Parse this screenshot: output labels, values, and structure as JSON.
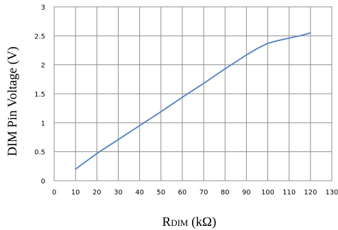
{
  "chart_data": {
    "type": "line",
    "xlabel_main": "R",
    "xlabel_sub": "DIM",
    "xlabel_unit": " (kΩ)",
    "ylabel": "DIM Pin Voltage (V)",
    "xlim": [
      0,
      130
    ],
    "ylim": [
      0,
      3
    ],
    "x_ticks": [
      "0",
      "10",
      "20",
      "30",
      "40",
      "50",
      "60",
      "70",
      "80",
      "90",
      "100",
      "110",
      "120",
      "130"
    ],
    "y_ticks": [
      "0",
      "0.5",
      "1",
      "1.5",
      "2",
      "2.5",
      "3"
    ],
    "grid": true,
    "line_color": "#5b87c5",
    "series": [
      {
        "x": [
          10,
          20,
          30,
          40,
          50,
          60,
          70,
          80,
          90,
          95,
          100,
          105,
          110,
          115,
          120
        ],
        "y": [
          0.2,
          0.47,
          0.71,
          0.95,
          1.19,
          1.44,
          1.68,
          1.93,
          2.17,
          2.28,
          2.37,
          2.42,
          2.46,
          2.5,
          2.55
        ]
      }
    ]
  }
}
